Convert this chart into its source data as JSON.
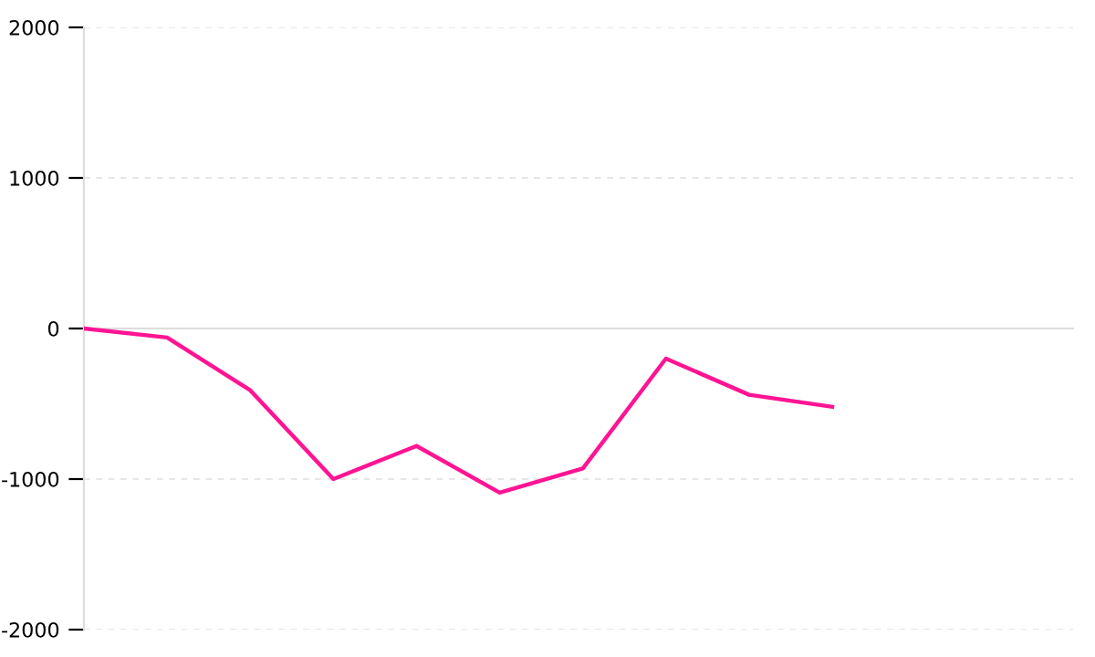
{
  "chart_data": {
    "type": "line",
    "categories": [
      null,
      null,
      null,
      null,
      null,
      null,
      null,
      null,
      null,
      null
    ],
    "series": [
      {
        "color": "#ff1493",
        "values": [
          0,
          -60,
          -410,
          -1000,
          -780,
          -1090,
          -930,
          -200,
          -440,
          -520
        ]
      }
    ],
    "ylim": [
      -2000,
      2000
    ],
    "yticks": [
      -2000,
      -1000,
      0,
      1000,
      2000
    ],
    "tick_labels": "y",
    "grid": "y",
    "marker": "none",
    "line_style": "solid",
    "legend": false
  }
}
